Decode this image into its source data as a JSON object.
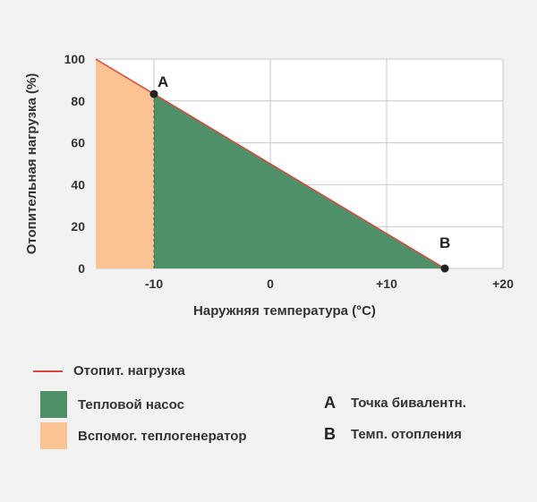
{
  "chart_data": {
    "type": "area",
    "xlabel": "Наружняя температура (°C)",
    "ylabel": "Отопительная нагрузка (%)",
    "xlim": [
      -15,
      20
    ],
    "ylim": [
      0,
      100
    ],
    "x_ticks": [
      -10,
      0,
      10,
      20
    ],
    "x_tick_labels": [
      "-10",
      "0",
      "+10",
      "+20"
    ],
    "y_ticks": [
      0,
      20,
      40,
      60,
      80,
      100
    ],
    "y_tick_labels": [
      "0",
      "20",
      "40",
      "60",
      "80",
      "100"
    ],
    "grid": true,
    "load_line": {
      "x": [
        -15,
        15
      ],
      "y": [
        100,
        0
      ],
      "color": "#d9483b"
    },
    "regions": [
      {
        "name": "Вспомог. теплогенератор",
        "x_range": [
          -15,
          -10
        ],
        "color": "#fbc393"
      },
      {
        "name": "Тепловой насос",
        "x_range": [
          -10,
          15
        ],
        "color": "#4e9168"
      }
    ],
    "points": [
      {
        "label": "A",
        "x": -10,
        "y": 83.3
      },
      {
        "label": "B",
        "x": 15,
        "y": 0
      }
    ]
  },
  "legend": {
    "load_label": "Отопит. нагрузка",
    "heat_pump_label": "Тепловой насос",
    "aux_label": "Вспомог. теплогенератор",
    "point_a_letter": "A",
    "point_a_desc": "Точка бивалентн.",
    "point_b_letter": "B",
    "point_b_desc": "Темп. отопления",
    "load_color": "#d9483b",
    "heat_pump_color": "#4e9168",
    "aux_color": "#fbc393"
  }
}
